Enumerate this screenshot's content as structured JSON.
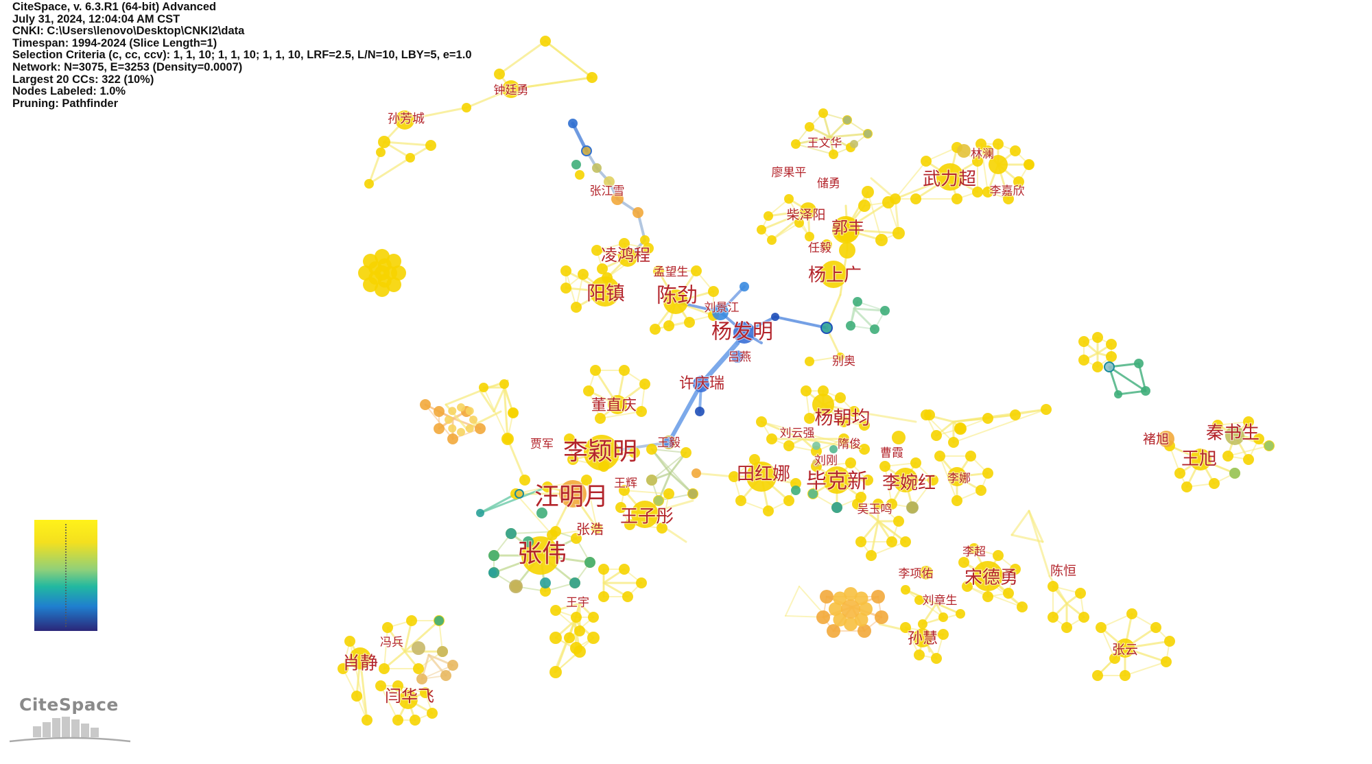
{
  "header": {
    "lines": [
      "CiteSpace, v. 6.3.R1 (64-bit) Advanced",
      "July 31, 2024, 12:04:04 AM CST",
      "CNKI: C:\\Users\\lenovo\\Desktop\\CNKI2\\data",
      "Timespan: 1994-2024 (Slice Length=1)",
      "Selection Criteria (c, cc, ccv): 1, 1, 10; 1, 1, 10; 1, 1, 10, LRF=2.5, L/N=10, LBY=5, e=1.0",
      "Network: N=3075, E=3253 (Density=0.0007)",
      "Largest 20 CCs: 322 (10%)",
      "Nodes Labeled: 1.0%",
      "Pruning: Pathfinder"
    ]
  },
  "logo": {
    "text": "CiteSpace"
  },
  "colors": {
    "label": "#b3242b",
    "node_recent": "#f6d400",
    "node_mid": "#e8c23a",
    "node_orange": "#f2a93b",
    "node_green": "#3fae7a",
    "node_teal": "#2aa198",
    "node_blue": "#2f6fd0",
    "node_dark_blue": "#1f4fb8",
    "edge_yellow": "#f7ea7a",
    "edge_blue": "#5c8fe0",
    "legend_top": "#f9e81e",
    "legend_bottom": "#2b2a86"
  },
  "labels": [
    {
      "name": "钟廷勇",
      "size": "medium"
    },
    {
      "name": "孙芳城",
      "size": "medium"
    },
    {
      "name": "王文华",
      "size": "small"
    },
    {
      "name": "廖果平",
      "size": "small"
    },
    {
      "name": "储勇",
      "size": "small"
    },
    {
      "name": "林澜",
      "size": "small"
    },
    {
      "name": "武力超",
      "size": "large"
    },
    {
      "name": "李嘉欣",
      "size": "small"
    },
    {
      "name": "张江雪",
      "size": "small"
    },
    {
      "name": "柴泽阳",
      "size": "medium"
    },
    {
      "name": "郭丰",
      "size": "large"
    },
    {
      "name": "任毅",
      "size": "small"
    },
    {
      "name": "凌鸿程",
      "size": "large"
    },
    {
      "name": "孟望生",
      "size": "small"
    },
    {
      "name": "杨上广",
      "size": "large"
    },
    {
      "name": "阳镇",
      "size": "large"
    },
    {
      "name": "陈劲",
      "size": "xlarge"
    },
    {
      "name": "刘景江",
      "size": "small"
    },
    {
      "name": "杨发明",
      "size": "xlarge"
    },
    {
      "name": "吕燕",
      "size": "small"
    },
    {
      "name": "别奥",
      "size": "small"
    },
    {
      "name": "许庆瑞",
      "size": "large"
    },
    {
      "name": "董直庆",
      "size": "large"
    },
    {
      "name": "杨朝均",
      "size": "large"
    },
    {
      "name": "刘云强",
      "size": "small"
    },
    {
      "name": "贾军",
      "size": "small"
    },
    {
      "name": "李颖明",
      "size": "xxlarge"
    },
    {
      "name": "隋俊",
      "size": "small"
    },
    {
      "name": "王毅",
      "size": "small"
    },
    {
      "name": "曹霞",
      "size": "small"
    },
    {
      "name": "秦书生",
      "size": "large"
    },
    {
      "name": "褚旭",
      "size": "medium"
    },
    {
      "name": "刘刚",
      "size": "small"
    },
    {
      "name": "王旭",
      "size": "large"
    },
    {
      "name": "田红娜",
      "size": "large"
    },
    {
      "name": "毕克新",
      "size": "xlarge"
    },
    {
      "name": "李婉红",
      "size": "large"
    },
    {
      "name": "李娜",
      "size": "small"
    },
    {
      "name": "王辉",
      "size": "small"
    },
    {
      "name": "汪明月",
      "size": "xxlarge"
    },
    {
      "name": "吴玉鸣",
      "size": "small"
    },
    {
      "name": "王子彤",
      "size": "large"
    },
    {
      "name": "张浩",
      "size": "medium"
    },
    {
      "name": "李超",
      "size": "small"
    },
    {
      "name": "陈恒",
      "size": "medium"
    },
    {
      "name": "张伟",
      "size": "xxlarge"
    },
    {
      "name": "李项佑",
      "size": "small"
    },
    {
      "name": "宋德勇",
      "size": "large"
    },
    {
      "name": "刘章生",
      "size": "small"
    },
    {
      "name": "王宇",
      "size": "small"
    },
    {
      "name": "冯兵",
      "size": "small"
    },
    {
      "name": "孙慧",
      "size": "medium"
    },
    {
      "name": "张云",
      "size": "medium"
    },
    {
      "name": "肖静",
      "size": "large"
    },
    {
      "name": "闫华飞",
      "size": "large"
    }
  ]
}
